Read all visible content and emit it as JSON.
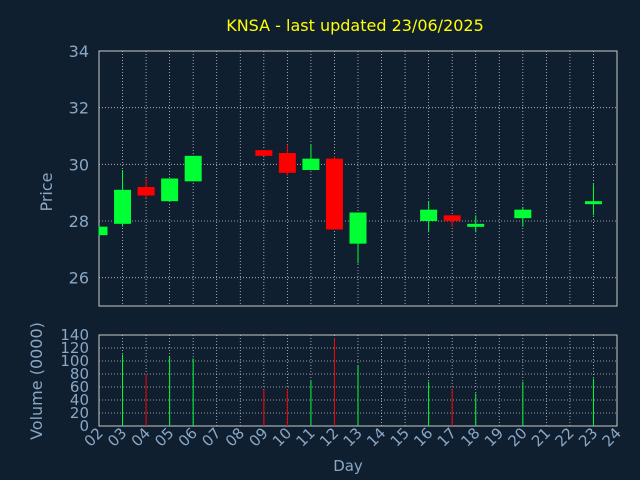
{
  "chart_data": {
    "type": "candlestick",
    "title": "KNSA - last updated 23/06/2025",
    "xlabel": "Day",
    "price_panel": {
      "ylabel": "Price",
      "ylim": [
        25,
        34
      ],
      "yticks": [
        26,
        28,
        30,
        32,
        34
      ]
    },
    "volume_panel": {
      "ylabel": "Volume (0000)",
      "ylim": [
        0,
        140
      ],
      "yticks": [
        0,
        20,
        40,
        60,
        80,
        100,
        120,
        140
      ]
    },
    "x_labels": [
      "02",
      "03",
      "04",
      "05",
      "06",
      "07",
      "08",
      "09",
      "10",
      "11",
      "12",
      "13",
      "14",
      "15",
      "16",
      "17",
      "18",
      "19",
      "20",
      "21",
      "22",
      "23",
      "24"
    ],
    "grid": true,
    "candles": [
      {
        "day": "02",
        "open": 27.5,
        "high": 27.8,
        "low": 27.5,
        "close": 27.8,
        "volume": 0
      },
      {
        "day": "03",
        "open": 27.9,
        "high": 29.8,
        "low": 27.8,
        "close": 29.1,
        "volume": 110
      },
      {
        "day": "04",
        "open": 29.2,
        "high": 29.5,
        "low": 28.8,
        "close": 28.9,
        "volume": 80
      },
      {
        "day": "05",
        "open": 28.7,
        "high": 29.5,
        "low": 28.7,
        "close": 29.5,
        "volume": 107
      },
      {
        "day": "06",
        "open": 29.4,
        "high": 30.3,
        "low": 29.4,
        "close": 30.3,
        "volume": 104
      },
      {
        "day": "09",
        "open": 30.5,
        "high": 30.5,
        "low": 30.3,
        "close": 30.3,
        "volume": 56
      },
      {
        "day": "10",
        "open": 30.4,
        "high": 30.7,
        "low": 29.6,
        "close": 29.7,
        "volume": 57
      },
      {
        "day": "11",
        "open": 29.8,
        "high": 30.7,
        "low": 29.8,
        "close": 30.2,
        "volume": 70
      },
      {
        "day": "12",
        "open": 30.2,
        "high": 30.3,
        "low": 27.7,
        "close": 27.7,
        "volume": 135
      },
      {
        "day": "13",
        "open": 27.2,
        "high": 28.3,
        "low": 26.5,
        "close": 28.3,
        "volume": 93
      },
      {
        "day": "16",
        "open": 28.0,
        "high": 28.7,
        "low": 27.6,
        "close": 28.4,
        "volume": 68
      },
      {
        "day": "17",
        "open": 28.2,
        "high": 28.2,
        "low": 27.8,
        "close": 28.0,
        "volume": 58
      },
      {
        "day": "18",
        "open": 27.9,
        "high": 28.2,
        "low": 27.6,
        "close": 27.9,
        "volume": 50
      },
      {
        "day": "20",
        "open": 28.1,
        "high": 28.5,
        "low": 27.8,
        "close": 28.4,
        "volume": 68
      },
      {
        "day": "23",
        "open": 28.6,
        "high": 29.3,
        "low": 28.2,
        "close": 28.7,
        "volume": 73
      }
    ],
    "colors": {
      "background": "#0f1f30",
      "axis_text": "#8aa7c4",
      "title": "#ffff00",
      "grid": "#c8c8c8",
      "axis_line": "#c8c8c8",
      "up": "#00ff33",
      "down": "#ff0000"
    }
  }
}
